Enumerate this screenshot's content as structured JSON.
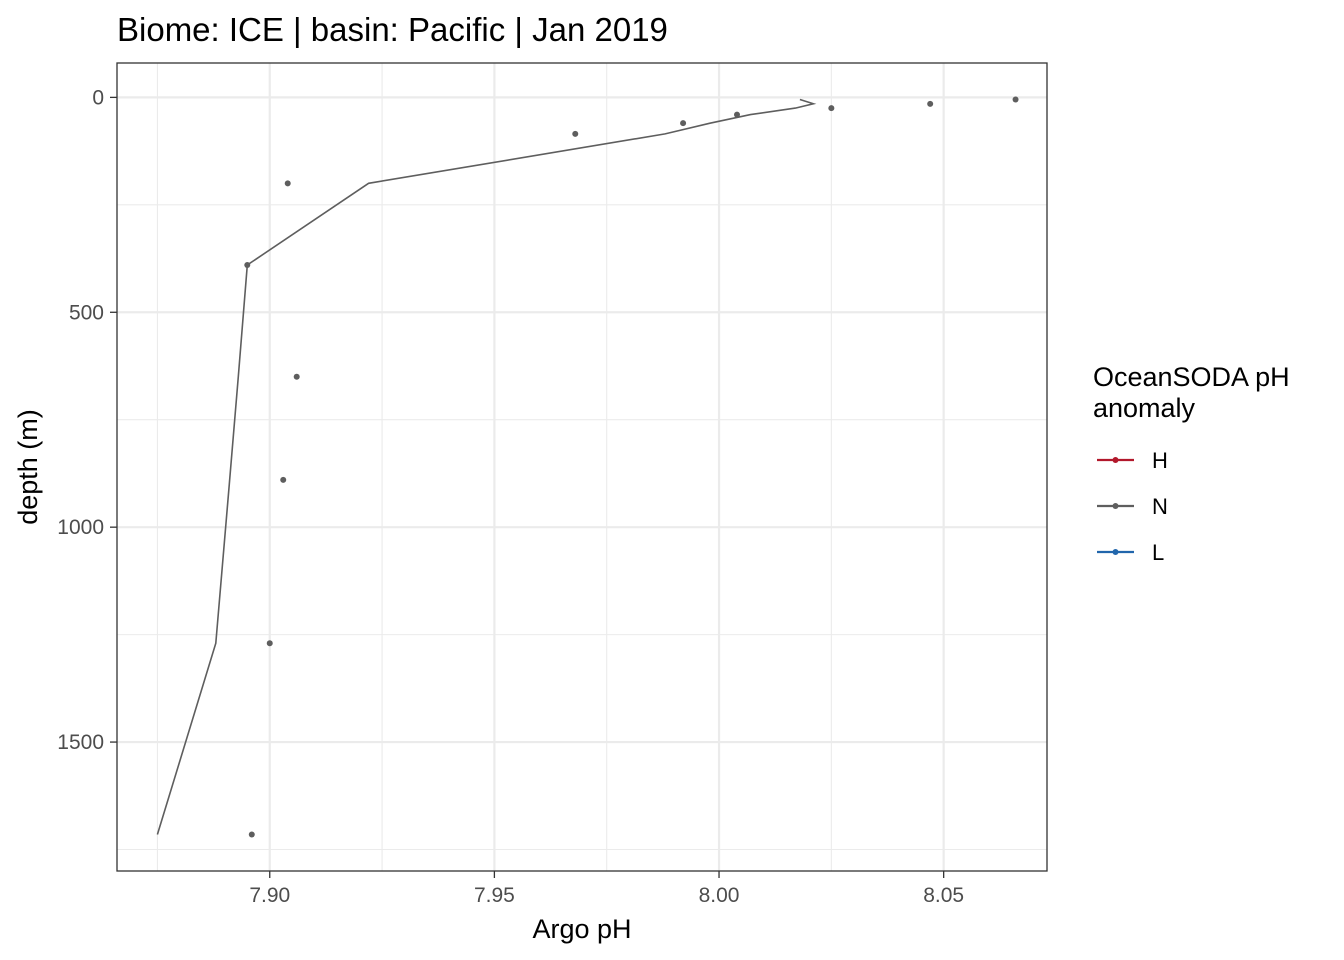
{
  "chart_data": {
    "type": "line",
    "title": "Biome: ICE | basin: Pacific  | Jan 2019",
    "xlabel": "Argo pH",
    "ylabel": "depth (m)",
    "xlim": [
      7.866,
      8.073
    ],
    "ylim": [
      -80,
      1800
    ],
    "y_reversed": true,
    "x_ticks": [
      7.9,
      7.95,
      8.0,
      8.05
    ],
    "x_tick_labels": [
      "7.90",
      "7.95",
      "8.00",
      "8.05"
    ],
    "y_ticks": [
      0,
      500,
      1000,
      1500
    ],
    "y_tick_labels": [
      "0",
      "500",
      "1000",
      "1500"
    ],
    "grid": true,
    "legend": {
      "title_lines": [
        "OceanSODA pH",
        "anomaly"
      ],
      "placement": "right",
      "entries": [
        {
          "label": "H",
          "color": "#b2182b"
        },
        {
          "label": "N",
          "color": "#5e5e5e"
        },
        {
          "label": "L",
          "color": "#2166ac"
        }
      ]
    },
    "series": [
      {
        "name": "N",
        "color": "#5e5e5e",
        "line": {
          "x": [
            8.018,
            8.021,
            8.017,
            8.007,
            7.998,
            7.988,
            7.922,
            7.895,
            7.893,
            7.891,
            7.888,
            7.875
          ],
          "y": [
            5,
            15,
            25,
            40,
            60,
            85,
            200,
            390,
            650,
            900,
            1270,
            1715
          ]
        },
        "points": {
          "x": [
            8.066,
            8.047,
            8.025,
            8.004,
            7.992,
            7.968,
            7.904,
            7.895,
            7.906,
            7.903,
            7.9,
            7.896
          ],
          "y": [
            5,
            15,
            25,
            40,
            60,
            85,
            200,
            390,
            650,
            890,
            1270,
            1715
          ]
        }
      }
    ]
  }
}
